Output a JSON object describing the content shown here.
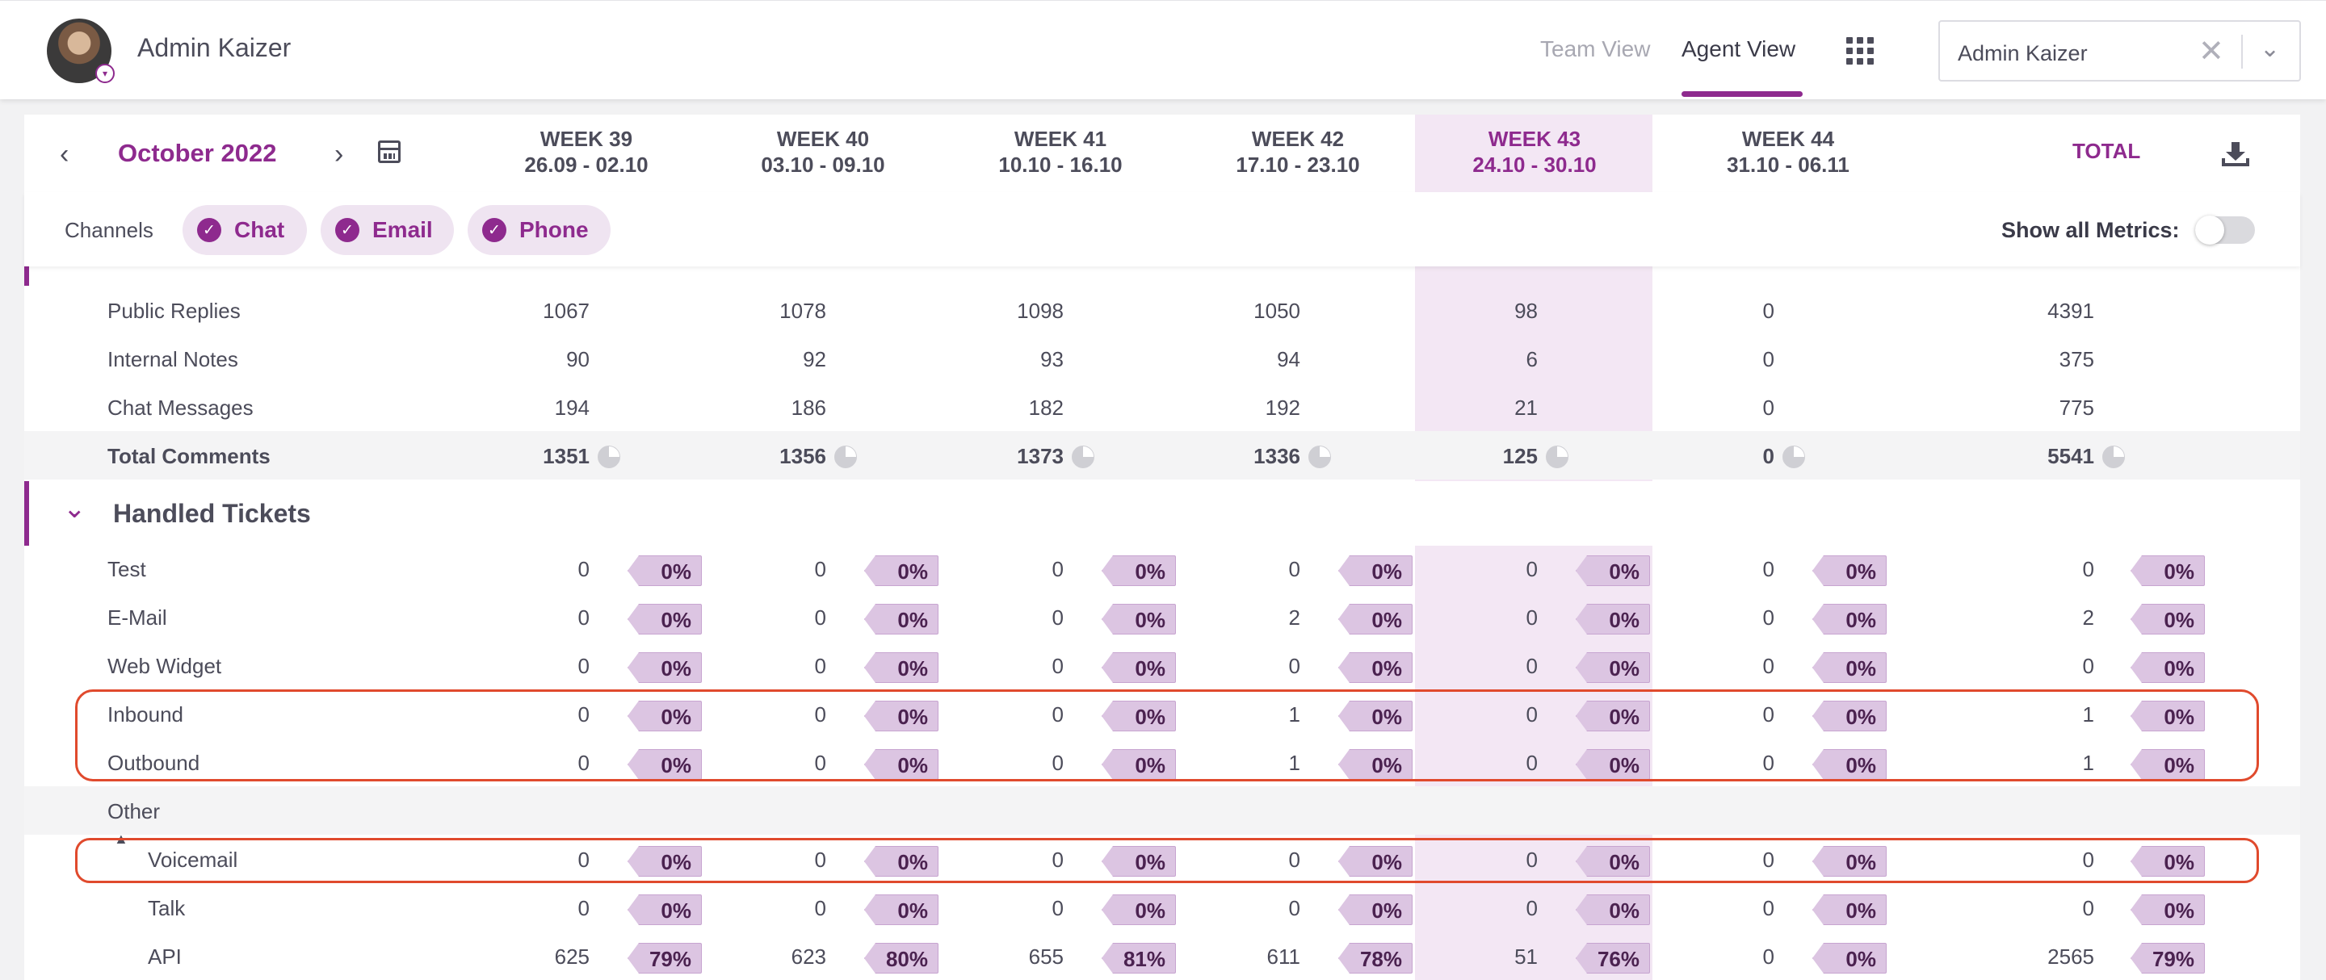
{
  "header": {
    "user_name": "Admin Kaizer",
    "nav": {
      "team_view": "Team View",
      "agent_view": "Agent View"
    },
    "agent_select": {
      "value": "Admin Kaizer",
      "clear": "✕",
      "chevron": "⌄"
    }
  },
  "period": {
    "month": "October 2022",
    "prev": "‹",
    "next": "›",
    "weeks": [
      {
        "week": "WEEK 39",
        "range": "26.09 - 02.10"
      },
      {
        "week": "WEEK 40",
        "range": "03.10 - 09.10"
      },
      {
        "week": "WEEK 41",
        "range": "10.10 - 16.10"
      },
      {
        "week": "WEEK 42",
        "range": "17.10 - 23.10"
      },
      {
        "week": "WEEK 43",
        "range": "24.10 - 30.10"
      },
      {
        "week": "WEEK 44",
        "range": "31.10 - 06.11"
      }
    ],
    "total_label": "TOTAL"
  },
  "channels": {
    "label": "Channels",
    "chips": [
      "Chat",
      "Email",
      "Phone"
    ],
    "check": "✓",
    "show_all_metrics": "Show all Metrics:"
  },
  "comments": {
    "rows": [
      {
        "label": "Public Replies",
        "values": [
          "1067",
          "1078",
          "1098",
          "1050",
          "98",
          "0",
          "4391"
        ]
      },
      {
        "label": "Internal Notes",
        "values": [
          "90",
          "92",
          "93",
          "94",
          "6",
          "0",
          "375"
        ]
      },
      {
        "label": "Chat Messages",
        "values": [
          "194",
          "186",
          "182",
          "192",
          "21",
          "0",
          "775"
        ]
      }
    ],
    "total": {
      "label": "Total Comments",
      "values": [
        "1351",
        "1356",
        "1373",
        "1336",
        "125",
        "0",
        "5541"
      ]
    }
  },
  "handled_tickets": {
    "title": "Handled Tickets",
    "chevron": "⌄",
    "rows": [
      {
        "label": "Test",
        "values": [
          "0",
          "0",
          "0",
          "0",
          "0",
          "0",
          "0"
        ],
        "pcts": [
          "0%",
          "0%",
          "0%",
          "0%",
          "0%",
          "0%",
          "0%"
        ]
      },
      {
        "label": "E-Mail",
        "values": [
          "0",
          "0",
          "0",
          "2",
          "0",
          "0",
          "2"
        ],
        "pcts": [
          "0%",
          "0%",
          "0%",
          "0%",
          "0%",
          "0%",
          "0%"
        ]
      },
      {
        "label": "Web Widget",
        "values": [
          "0",
          "0",
          "0",
          "0",
          "0",
          "0",
          "0"
        ],
        "pcts": [
          "0%",
          "0%",
          "0%",
          "0%",
          "0%",
          "0%",
          "0%"
        ]
      },
      {
        "label": "Inbound",
        "values": [
          "0",
          "0",
          "0",
          "1",
          "0",
          "0",
          "1"
        ],
        "pcts": [
          "0%",
          "0%",
          "0%",
          "0%",
          "0%",
          "0%",
          "0%"
        ]
      },
      {
        "label": "Outbound",
        "values": [
          "0",
          "0",
          "0",
          "1",
          "0",
          "0",
          "1"
        ],
        "pcts": [
          "0%",
          "0%",
          "0%",
          "0%",
          "0%",
          "0%",
          "0%"
        ]
      }
    ],
    "other": {
      "label": "Other",
      "caret": "▲",
      "rows": [
        {
          "label": "Voicemail",
          "values": [
            "0",
            "0",
            "0",
            "0",
            "0",
            "0",
            "0"
          ],
          "pcts": [
            "0%",
            "0%",
            "0%",
            "0%",
            "0%",
            "0%",
            "0%"
          ]
        },
        {
          "label": "Talk",
          "values": [
            "0",
            "0",
            "0",
            "0",
            "0",
            "0",
            "0"
          ],
          "pcts": [
            "0%",
            "0%",
            "0%",
            "0%",
            "0%",
            "0%",
            "0%"
          ]
        },
        {
          "label": "API",
          "values": [
            "625",
            "623",
            "655",
            "611",
            "51",
            "0",
            "2565"
          ],
          "pcts": [
            "79%",
            "80%",
            "81%",
            "78%",
            "76%",
            "0%",
            "79%"
          ]
        }
      ]
    }
  },
  "colors": {
    "accent": "#8e2a8e",
    "highlight_week": "#f3e7f4",
    "annotation": "#e04a2d"
  }
}
